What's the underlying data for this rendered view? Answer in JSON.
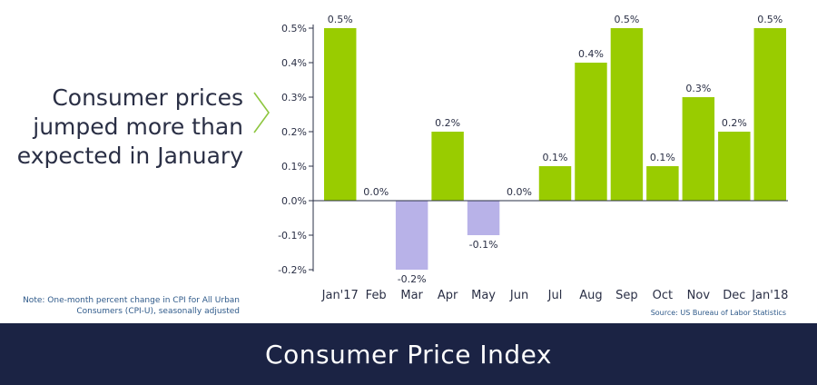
{
  "headline": "Consumer prices\njumped more than\nexpected in January",
  "note": "Note: One-month percent change in CPI for All Urban Consumers (CPI-U), seasonally adjusted",
  "source": "Source: US Bureau of Labor Statistics",
  "banner_title": "Consumer Price Index",
  "colors": {
    "positive": "#99cc00",
    "negative": "#b8b2e8",
    "text": "#2a2f45",
    "banner": "#1b2344",
    "chevron": "#8dc63f",
    "note": "#2f5a8a"
  },
  "chart_data": {
    "type": "bar",
    "title": "Consumer Price Index",
    "categories": [
      "Jan'17",
      "Feb",
      "Mar",
      "Apr",
      "May",
      "Jun",
      "Jul",
      "Aug",
      "Sep",
      "Oct",
      "Nov",
      "Dec",
      "Jan'18"
    ],
    "values": [
      0.5,
      0.0,
      -0.2,
      0.2,
      -0.1,
      0.0,
      0.1,
      0.4,
      0.5,
      0.1,
      0.3,
      0.2,
      0.5
    ],
    "data_labels": [
      "0.5%",
      "0.0%",
      "-0.2%",
      "0.2%",
      "-0.1%",
      "0.0%",
      "0.1%",
      "0.4%",
      "0.5%",
      "0.1%",
      "0.3%",
      "0.2%",
      "0.5%"
    ],
    "yticks": [
      0.5,
      0.4,
      0.3,
      0.2,
      0.1,
      0.0,
      -0.1,
      -0.2
    ],
    "ytick_labels": [
      "0.5%",
      "0.4%",
      "0.3%",
      "0.2%",
      "0.1%",
      "0.0%",
      "-0.1%",
      "-0.2%"
    ],
    "ylim": [
      -0.2,
      0.5
    ],
    "xlabel": "",
    "ylabel": "",
    "grid": false
  }
}
